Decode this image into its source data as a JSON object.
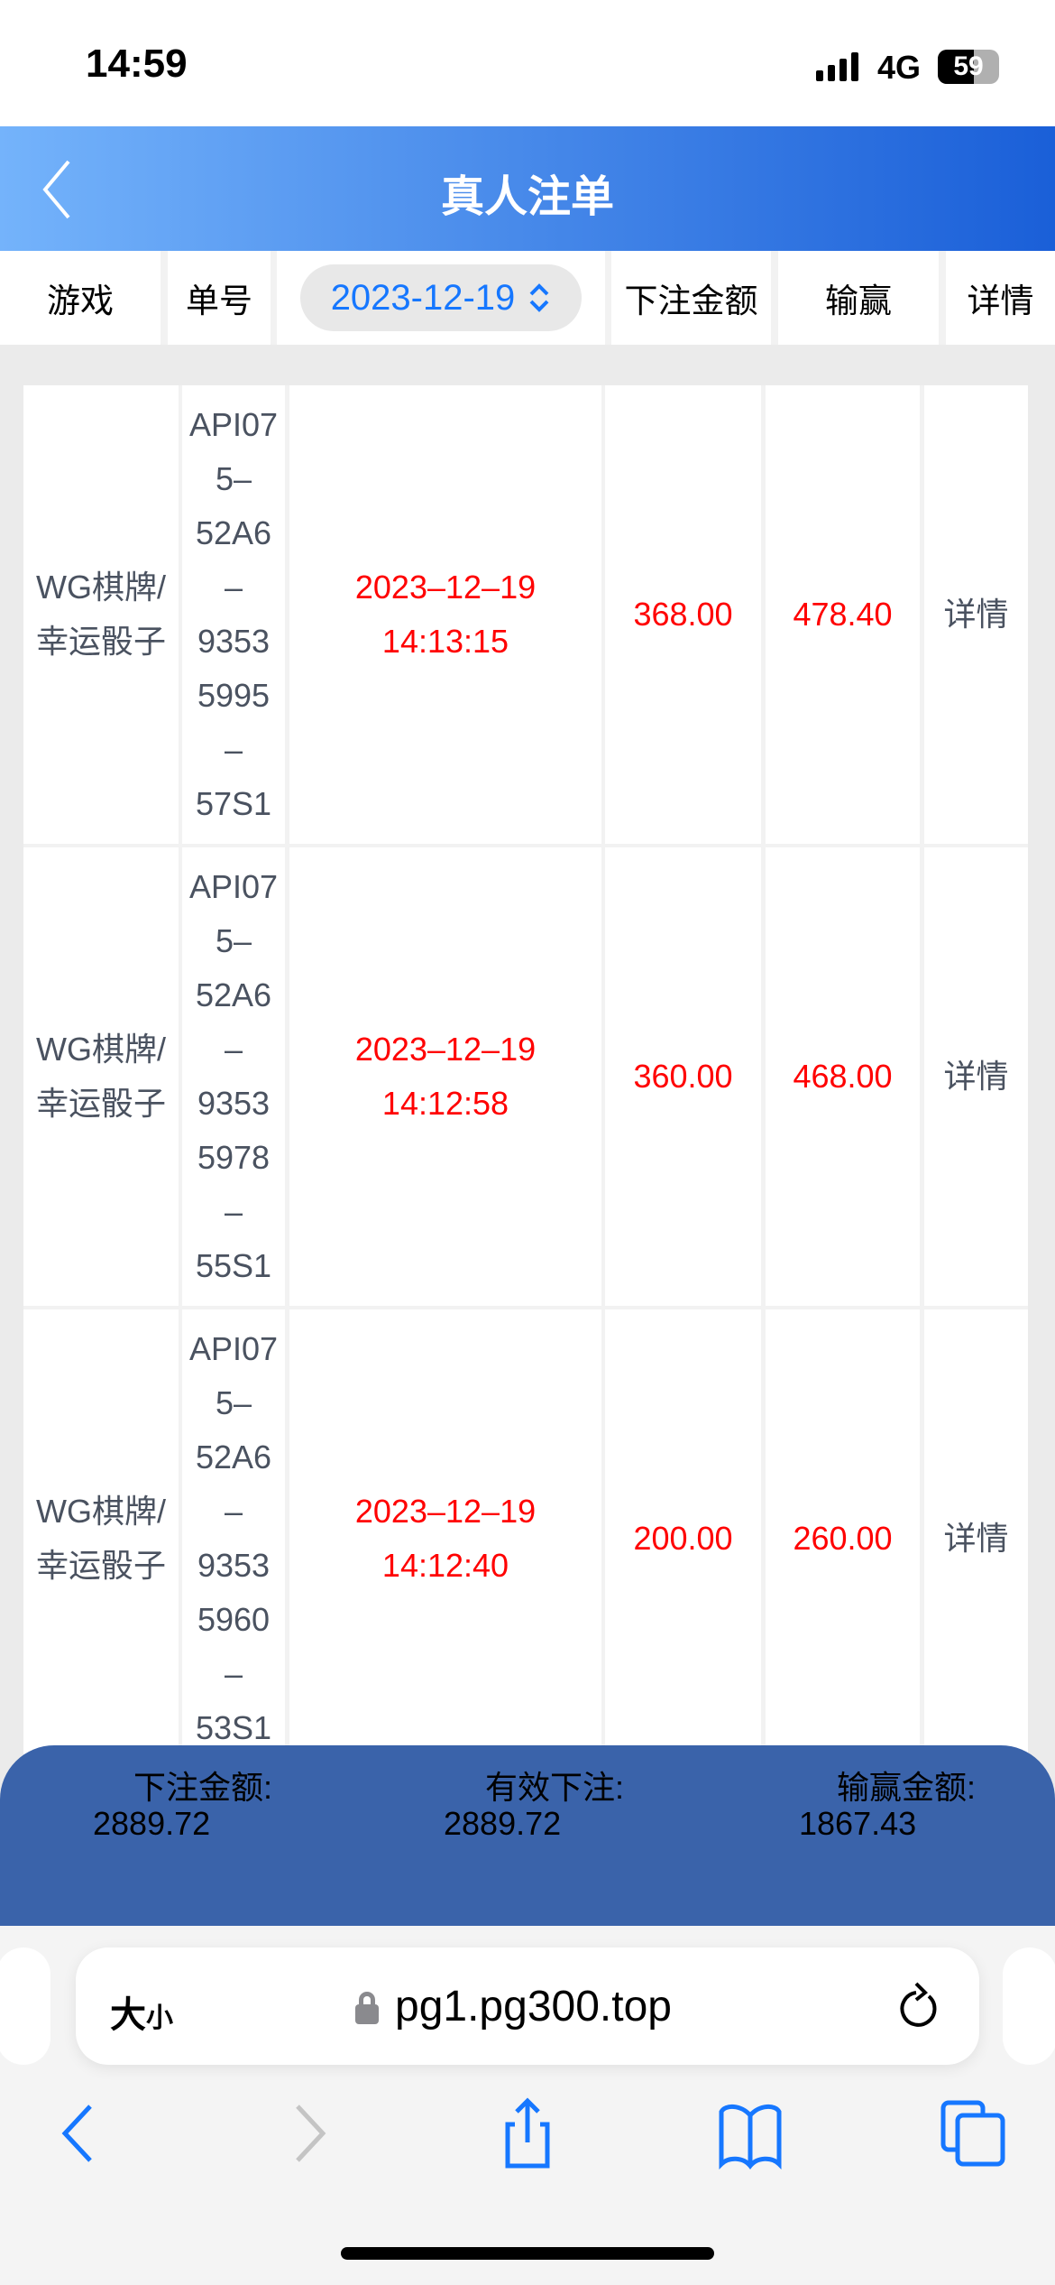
{
  "status_bar": {
    "time": "14:59",
    "network": "4G",
    "battery": "59",
    "battery_level": 59
  },
  "nav": {
    "title": "真人注单"
  },
  "columns": {
    "game": "游戏",
    "order_id": "单号",
    "date": "2023-12-19",
    "bet_amount": "下注金额",
    "win_loss": "输赢",
    "detail": "详情"
  },
  "rows": [
    {
      "game_line1": "WG棋牌/",
      "game_line2": "幸运骰子",
      "order_id_lines": [
        "API07",
        "5–",
        "52A6",
        "–",
        "9353",
        "5995",
        "–",
        "57S1"
      ],
      "date": "2023–12–19",
      "time": "14:13:15",
      "bet": "368.00",
      "win": "478.40",
      "detail": "详情"
    },
    {
      "game_line1": "WG棋牌/",
      "game_line2": "幸运骰子",
      "order_id_lines": [
        "API07",
        "5–",
        "52A6",
        "–",
        "9353",
        "5978",
        "–",
        "55S1"
      ],
      "date": "2023–12–19",
      "time": "14:12:58",
      "bet": "360.00",
      "win": "468.00",
      "detail": "详情"
    },
    {
      "game_line1": "WG棋牌/",
      "game_line2": "幸运骰子",
      "order_id_lines": [
        "API07",
        "5–",
        "52A6",
        "–",
        "9353",
        "5960",
        "–",
        "53S1"
      ],
      "date": "2023–12–19",
      "time": "14:12:40",
      "bet": "200.00",
      "win": "260.00",
      "detail": "详情"
    }
  ],
  "summary": {
    "bet_label": "下注金额:",
    "bet_value": "2889.72",
    "valid_label": "有效下注:",
    "valid_value": "2889.72",
    "win_label": "输赢金额:",
    "win_value": "1867.43"
  },
  "browser": {
    "text_size": "大",
    "text_size_small": "小",
    "url": "pg1.pg300.top"
  },
  "colors": {
    "accent": "#1677ff",
    "negative": "#ff0000",
    "footer": "#3a63aa"
  }
}
